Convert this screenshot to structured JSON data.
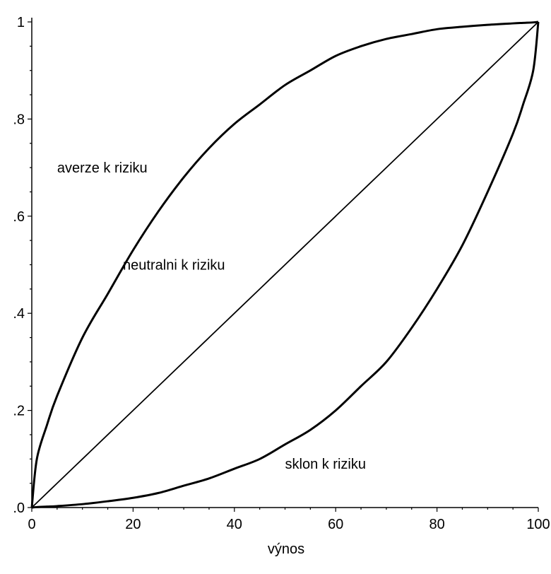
{
  "chart_data": {
    "type": "line",
    "xlabel": "výnos",
    "ylabel": "",
    "xlim": [
      0,
      100
    ],
    "ylim": [
      0,
      1
    ],
    "grid": false,
    "x_ticks": [
      0,
      20,
      40,
      60,
      80,
      100
    ],
    "x_tick_labels": [
      "0",
      "20",
      "40",
      "60",
      "80",
      "100"
    ],
    "y_ticks": [
      0,
      0.2,
      0.4,
      0.6,
      0.8,
      1
    ],
    "y_tick_labels": [
      ".0",
      ".2",
      ".4",
      ".6",
      ".8",
      "1"
    ],
    "x": [
      0,
      1,
      3,
      5,
      10,
      15,
      20,
      25,
      30,
      35,
      40,
      45,
      50,
      55,
      60,
      65,
      70,
      75,
      80,
      85,
      90,
      95,
      97,
      99,
      100
    ],
    "series": [
      {
        "values": [
          0,
          0.1,
          0.17,
          0.23,
          0.35,
          0.44,
          0.53,
          0.61,
          0.68,
          0.74,
          0.79,
          0.83,
          0.87,
          0.9,
          0.93,
          0.95,
          0.965,
          0.975,
          0.985,
          0.99,
          0.994,
          0.997,
          0.998,
          0.999,
          1
        ],
        "stroke_width": 3
      },
      {
        "values": [
          0,
          0.01,
          0.03,
          0.05,
          0.1,
          0.15,
          0.2,
          0.25,
          0.3,
          0.35,
          0.4,
          0.45,
          0.5,
          0.55,
          0.6,
          0.65,
          0.7,
          0.75,
          0.8,
          0.85,
          0.9,
          0.95,
          0.97,
          0.99,
          1
        ],
        "stroke_width": 1.8
      },
      {
        "values": [
          0,
          0.001,
          0.002,
          0.003,
          0.007,
          0.013,
          0.02,
          0.03,
          0.045,
          0.06,
          0.08,
          0.1,
          0.13,
          0.16,
          0.2,
          0.25,
          0.3,
          0.37,
          0.45,
          0.54,
          0.65,
          0.77,
          0.83,
          0.9,
          1
        ],
        "stroke_width": 3
      }
    ],
    "annotations": [
      {
        "text": "averze k riziku",
        "x": 5,
        "y": 0.69
      },
      {
        "text": "neutralni k riziku",
        "x": 18,
        "y": 0.49
      },
      {
        "text": "sklon k riziku",
        "x": 50,
        "y": 0.08
      }
    ],
    "colors": {
      "line": "#000000",
      "background": "#ffffff"
    }
  }
}
